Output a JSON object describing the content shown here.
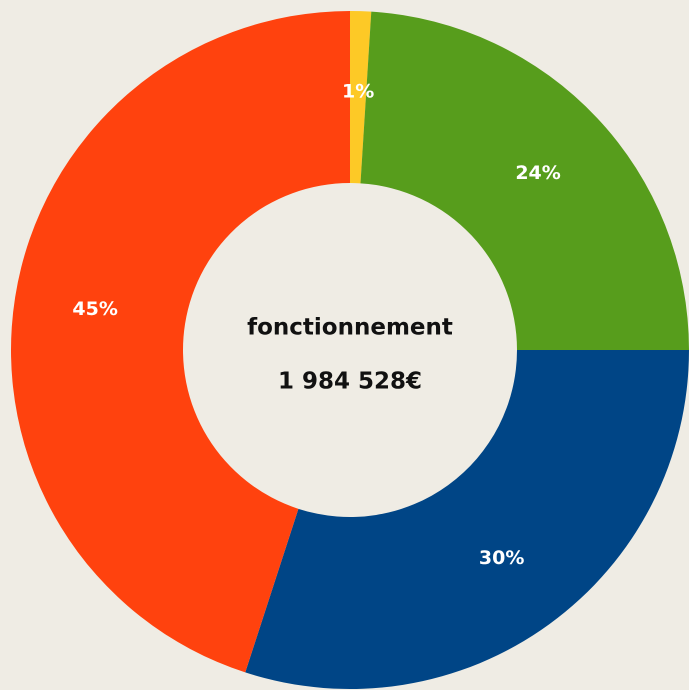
{
  "chart_data": {
    "type": "donut",
    "categories": [
      null,
      null,
      null,
      null
    ],
    "values": [
      1,
      24,
      30,
      45
    ],
    "value_labels": [
      "1%",
      "24%",
      "30%",
      "45%"
    ],
    "colors": [
      "#fdc926",
      "#579d1c",
      "#004586",
      "#ff420e"
    ],
    "annotations": [
      "fonctionnement",
      "1 984 528€"
    ]
  }
}
